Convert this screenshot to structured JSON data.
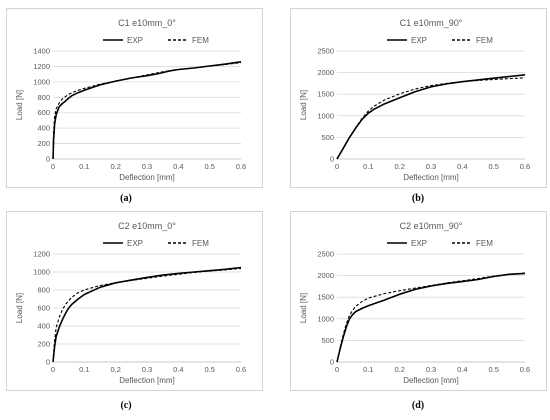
{
  "colors": {
    "exp": "#000000",
    "fem": "#000000",
    "grid": "#d9d9d9",
    "axis": "#bfbfbf",
    "text": "#595959"
  },
  "captions": [
    "(a)",
    "(b)",
    "(c)",
    "(d)"
  ],
  "chart_data": [
    {
      "type": "line",
      "title": "C1 e10mm_0°",
      "xlabel": "Deflection [mm]",
      "ylabel": "Load [N]",
      "xlim": [
        0,
        0.6
      ],
      "ylim": [
        0,
        1400
      ],
      "xticks": [
        "0",
        "0.1",
        "0.2",
        "0.3",
        "0.4",
        "0.5",
        "0.6"
      ],
      "yticks": [
        "0",
        "200",
        "400",
        "600",
        "800",
        "1000",
        "1200",
        "1400"
      ],
      "grid": true,
      "legend": "top-right",
      "series": [
        {
          "name": "EXP",
          "style": "solid",
          "x": [
            0,
            0.002,
            0.005,
            0.01,
            0.015,
            0.02,
            0.03,
            0.04,
            0.05,
            0.06,
            0.08,
            0.1,
            0.15,
            0.2,
            0.25,
            0.3,
            0.34,
            0.37,
            0.4,
            0.45,
            0.5,
            0.55,
            0.6
          ],
          "y": [
            0,
            250,
            450,
            570,
            630,
            680,
            720,
            750,
            790,
            820,
            860,
            890,
            960,
            1010,
            1050,
            1080,
            1110,
            1140,
            1160,
            1180,
            1205,
            1230,
            1260
          ]
        },
        {
          "name": "FEM",
          "style": "dashed",
          "x": [
            0,
            0.002,
            0.005,
            0.01,
            0.02,
            0.03,
            0.05,
            0.08,
            0.1,
            0.15,
            0.2,
            0.25,
            0.3,
            0.35,
            0.4,
            0.45,
            0.5,
            0.55,
            0.6
          ],
          "y": [
            0,
            350,
            550,
            650,
            730,
            780,
            840,
            890,
            915,
            970,
            1010,
            1050,
            1090,
            1130,
            1160,
            1180,
            1205,
            1225,
            1250
          ]
        }
      ]
    },
    {
      "type": "line",
      "title": "C1 e10mm_90°",
      "xlabel": "Deflection [mm]",
      "ylabel": "Load [N]",
      "xlim": [
        0,
        0.6
      ],
      "ylim": [
        0,
        2500
      ],
      "xticks": [
        "0",
        "0.1",
        "0.2",
        "0.3",
        "0.4",
        "0.5",
        "0.6"
      ],
      "yticks": [
        "0",
        "500",
        "1000",
        "1500",
        "2000",
        "2500"
      ],
      "grid": true,
      "legend": "top-right",
      "series": [
        {
          "name": "EXP",
          "style": "solid",
          "x": [
            0,
            0.02,
            0.04,
            0.06,
            0.08,
            0.1,
            0.12,
            0.15,
            0.2,
            0.25,
            0.3,
            0.35,
            0.4,
            0.45,
            0.5,
            0.55,
            0.6
          ],
          "y": [
            0,
            250,
            500,
            720,
            920,
            1060,
            1160,
            1270,
            1420,
            1560,
            1670,
            1740,
            1790,
            1830,
            1870,
            1910,
            1950
          ]
        },
        {
          "name": "FEM",
          "style": "dashed",
          "x": [
            0,
            0.02,
            0.04,
            0.06,
            0.08,
            0.1,
            0.12,
            0.15,
            0.2,
            0.25,
            0.3,
            0.35,
            0.4,
            0.45,
            0.5,
            0.55,
            0.6
          ],
          "y": [
            0,
            250,
            500,
            730,
            940,
            1110,
            1230,
            1360,
            1510,
            1620,
            1700,
            1750,
            1790,
            1820,
            1840,
            1860,
            1880
          ]
        }
      ]
    },
    {
      "type": "line",
      "title": "C2 e10mm_0°",
      "xlabel": "Deflection [mm]",
      "ylabel": "Load [N]",
      "xlim": [
        0,
        0.6
      ],
      "ylim": [
        0,
        1200
      ],
      "xticks": [
        "0",
        "0.1",
        "0.2",
        "0.3",
        "0.4",
        "0.5",
        "0.6"
      ],
      "yticks": [
        "0",
        "200",
        "400",
        "600",
        "800",
        "1000",
        "1200"
      ],
      "grid": true,
      "legend": "top-right",
      "series": [
        {
          "name": "EXP",
          "style": "solid",
          "x": [
            0,
            0.005,
            0.01,
            0.02,
            0.03,
            0.04,
            0.05,
            0.06,
            0.08,
            0.1,
            0.15,
            0.2,
            0.25,
            0.3,
            0.35,
            0.4,
            0.45,
            0.5,
            0.55,
            0.6
          ],
          "y": [
            0,
            170,
            280,
            390,
            470,
            540,
            600,
            640,
            700,
            750,
            830,
            880,
            910,
            940,
            965,
            985,
            1000,
            1015,
            1030,
            1050
          ]
        },
        {
          "name": "FEM",
          "style": "dashed",
          "x": [
            0,
            0.005,
            0.01,
            0.02,
            0.03,
            0.04,
            0.05,
            0.06,
            0.08,
            0.1,
            0.15,
            0.2,
            0.25,
            0.3,
            0.35,
            0.4,
            0.45,
            0.5,
            0.55,
            0.6
          ],
          "y": [
            0,
            240,
            380,
            500,
            580,
            640,
            680,
            720,
            770,
            800,
            850,
            880,
            905,
            930,
            955,
            975,
            995,
            1010,
            1025,
            1040
          ]
        }
      ]
    },
    {
      "type": "line",
      "title": "C2 e10mm_90°",
      "xlabel": "Deflection [mm]",
      "ylabel": "Load [N]",
      "xlim": [
        0,
        0.6
      ],
      "ylim": [
        0,
        2500
      ],
      "xticks": [
        "0",
        "0.1",
        "0.2",
        "0.3",
        "0.4",
        "0.5",
        "0.6"
      ],
      "yticks": [
        "0",
        "500",
        "1000",
        "1500",
        "2000",
        "2500"
      ],
      "grid": true,
      "legend": "top-right",
      "series": [
        {
          "name": "EXP",
          "style": "solid",
          "x": [
            0,
            0.01,
            0.02,
            0.03,
            0.04,
            0.05,
            0.06,
            0.08,
            0.1,
            0.15,
            0.2,
            0.25,
            0.3,
            0.35,
            0.4,
            0.45,
            0.5,
            0.55,
            0.6
          ],
          "y": [
            0,
            300,
            580,
            820,
            1000,
            1100,
            1170,
            1240,
            1300,
            1430,
            1570,
            1680,
            1760,
            1820,
            1860,
            1910,
            1980,
            2030,
            2050
          ]
        },
        {
          "name": "FEM",
          "style": "dashed",
          "x": [
            0,
            0.01,
            0.02,
            0.03,
            0.04,
            0.05,
            0.06,
            0.08,
            0.1,
            0.15,
            0.2,
            0.25,
            0.3,
            0.35,
            0.4,
            0.45,
            0.5,
            0.55,
            0.6
          ],
          "y": [
            0,
            330,
            640,
            890,
            1080,
            1200,
            1290,
            1400,
            1480,
            1580,
            1650,
            1710,
            1770,
            1830,
            1880,
            1930,
            1990,
            2030,
            2060
          ]
        }
      ]
    }
  ]
}
